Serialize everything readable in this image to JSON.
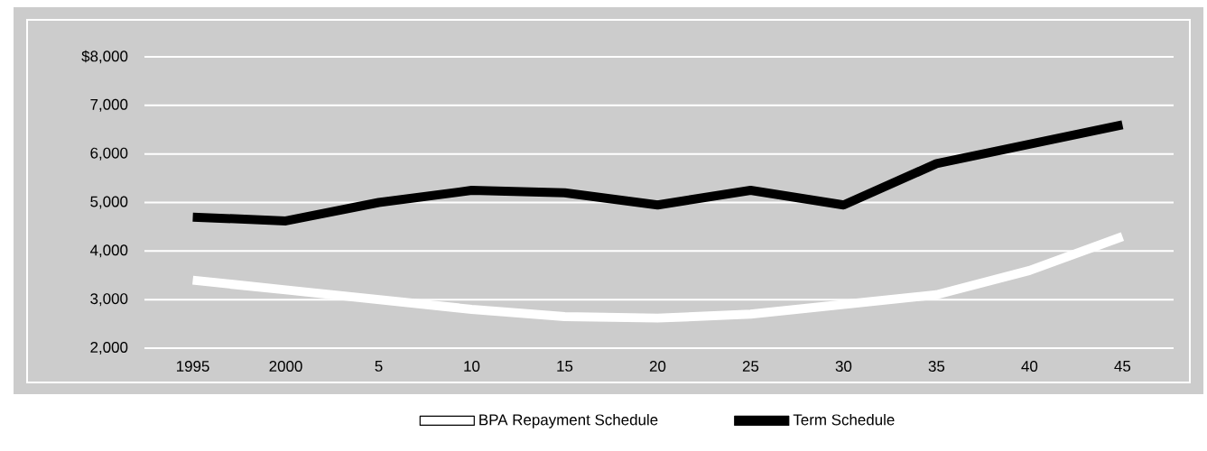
{
  "chart_data": {
    "type": "line",
    "categories": [
      "1995",
      "2000",
      "5",
      "10",
      "15",
      "20",
      "25",
      "30",
      "35",
      "40",
      "45"
    ],
    "series": [
      {
        "name": "BPA Repayment Schedule",
        "color": "#ffffff",
        "values": [
          3400,
          3200,
          3000,
          2800,
          2650,
          2620,
          2700,
          2900,
          3100,
          3600,
          4300
        ]
      },
      {
        "name": "Term Schedule",
        "color": "#000000",
        "values": [
          4700,
          4620,
          5000,
          5250,
          5200,
          4950,
          5250,
          4950,
          5800,
          6200,
          6600
        ]
      }
    ],
    "ylim": [
      2000,
      8000
    ],
    "yticks": [
      {
        "value": 2000,
        "label": "2,000"
      },
      {
        "value": 3000,
        "label": "3,000"
      },
      {
        "value": 4000,
        "label": "4,000"
      },
      {
        "value": 5000,
        "label": "5,000"
      },
      {
        "value": 6000,
        "label": "6,000"
      },
      {
        "value": 7000,
        "label": "7,000"
      },
      {
        "value": 8000,
        "label": "$8,000"
      }
    ],
    "grid": "y",
    "legend": "bottom",
    "marker": "none",
    "line_style": "solid"
  }
}
